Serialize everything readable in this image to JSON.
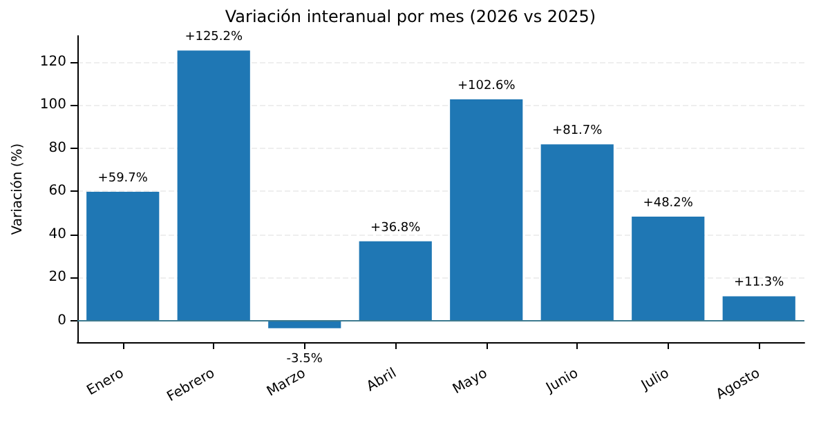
{
  "chart_data": {
    "type": "bar",
    "title": "Variación interanual por mes (2026 vs 2025)",
    "ylabel": "Variación (%)",
    "categories": [
      "Enero",
      "Febrero",
      "Marzo",
      "Abril",
      "Mayo",
      "Junio",
      "Julio",
      "Agosto"
    ],
    "values": [
      59.7,
      125.2,
      -3.5,
      36.8,
      102.6,
      81.7,
      48.2,
      11.3
    ],
    "value_labels": [
      "+59.7%",
      "+125.2%",
      "-3.5%",
      "+36.8%",
      "+102.6%",
      "+81.7%",
      "+48.2%",
      "+11.3%"
    ],
    "color": "#1f77b4",
    "ylim": [
      -10,
      132
    ],
    "yticks": [
      0,
      20,
      40,
      60,
      80,
      100,
      120
    ],
    "grid": "y",
    "ref_lines": [
      {
        "axis": "y",
        "value": 0,
        "color": "#3d7a8f"
      }
    ]
  }
}
